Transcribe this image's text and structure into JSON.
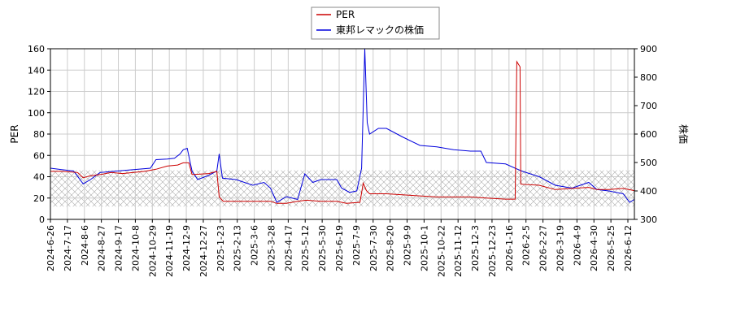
{
  "chart_data": {
    "type": "line",
    "legend": {
      "placement": "top-center",
      "entries": [
        "PER",
        "東邦レマックの株価"
      ]
    },
    "grid": true,
    "y_left": {
      "label": "PER",
      "range": [
        0,
        160
      ],
      "ticks": [
        0,
        20,
        40,
        60,
        80,
        100,
        120,
        140,
        160
      ]
    },
    "y_right": {
      "label": "株価",
      "range": [
        300,
        900
      ],
      "ticks": [
        300,
        400,
        500,
        600,
        700,
        800,
        900
      ]
    },
    "x_range": [
      "2024-06-26",
      "2026-06-26"
    ],
    "x_ticks": [
      "2024-6-26",
      "2024-7-17",
      "2024-8-6",
      "2024-8-27",
      "2024-9-17",
      "2024-10-8",
      "2024-10-29",
      "2024-11-19",
      "2024-12-9",
      "2024-12-27",
      "2025-1-23",
      "2025-2-13",
      "2025-3-6",
      "2025-3-28",
      "2025-4-17",
      "2025-5-12",
      "2025-5-30",
      "2025-6-19",
      "2025-7-9",
      "2025-7-30",
      "2025-8-20",
      "2025-9-9",
      "2025-10-1",
      "2025-10-22",
      "2025-11-12",
      "2025-12-3",
      "2025-12-23",
      "2026-1-16",
      "2026-2-5",
      "2026-2-27",
      "2026-3-19",
      "2026-4-9",
      "2026-4-30",
      "2026-5-25",
      "2026-6-12"
    ],
    "band": {
      "axis": "left",
      "from": 12,
      "to": 46
    },
    "series": [
      {
        "name": "PER",
        "axis": "left",
        "color": "#cc0000",
        "points": [
          [
            "2024-06-26",
            45
          ],
          [
            "2024-07-10",
            45
          ],
          [
            "2024-07-30",
            44
          ],
          [
            "2024-08-06",
            39
          ],
          [
            "2024-08-15",
            41
          ],
          [
            "2024-08-27",
            42
          ],
          [
            "2024-09-10",
            44
          ],
          [
            "2024-09-24",
            43
          ],
          [
            "2024-10-08",
            44
          ],
          [
            "2024-10-22",
            45
          ],
          [
            "2024-11-05",
            47
          ],
          [
            "2024-11-19",
            50
          ],
          [
            "2024-12-02",
            51
          ],
          [
            "2024-12-09",
            53
          ],
          [
            "2024-12-16",
            53
          ],
          [
            "2024-12-20",
            42
          ],
          [
            "2025-01-10",
            43
          ],
          [
            "2025-01-20",
            45
          ],
          [
            "2025-01-23",
            21
          ],
          [
            "2025-01-28",
            17
          ],
          [
            "2025-02-13",
            17
          ],
          [
            "2025-03-06",
            17
          ],
          [
            "2025-03-28",
            17
          ],
          [
            "2025-04-05",
            15
          ],
          [
            "2025-04-17",
            15
          ],
          [
            "2025-05-01",
            17
          ],
          [
            "2025-05-12",
            18
          ],
          [
            "2025-05-30",
            17
          ],
          [
            "2025-06-19",
            17
          ],
          [
            "2025-07-01",
            15
          ],
          [
            "2025-07-18",
            16
          ],
          [
            "2025-07-22",
            34
          ],
          [
            "2025-07-26",
            27
          ],
          [
            "2025-07-30",
            24
          ],
          [
            "2025-08-20",
            24
          ],
          [
            "2025-09-09",
            23
          ],
          [
            "2025-10-01",
            22
          ],
          [
            "2025-10-22",
            21
          ],
          [
            "2025-11-12",
            21
          ],
          [
            "2025-12-03",
            21
          ],
          [
            "2025-12-23",
            20
          ],
          [
            "2026-01-16",
            19
          ],
          [
            "2026-01-28",
            19
          ],
          [
            "2026-01-30",
            148
          ],
          [
            "2026-02-03",
            143
          ],
          [
            "2026-02-04",
            33
          ],
          [
            "2026-02-27",
            32
          ],
          [
            "2026-03-19",
            28
          ],
          [
            "2026-04-09",
            29
          ],
          [
            "2026-04-30",
            30
          ],
          [
            "2026-05-10",
            28
          ],
          [
            "2026-05-25",
            28
          ],
          [
            "2026-06-12",
            29
          ],
          [
            "2026-06-26",
            27
          ]
        ]
      },
      {
        "name": "東邦レマックの株価",
        "axis": "right",
        "color": "#0000dd",
        "points": [
          [
            "2024-06-26",
            480
          ],
          [
            "2024-07-10",
            475
          ],
          [
            "2024-07-25",
            470
          ],
          [
            "2024-08-06",
            425
          ],
          [
            "2024-08-15",
            440
          ],
          [
            "2024-08-27",
            465
          ],
          [
            "2024-09-17",
            470
          ],
          [
            "2024-10-08",
            475
          ],
          [
            "2024-10-29",
            480
          ],
          [
            "2024-11-05",
            510
          ],
          [
            "2024-11-19",
            512
          ],
          [
            "2024-11-28",
            515
          ],
          [
            "2024-12-05",
            530
          ],
          [
            "2024-12-09",
            545
          ],
          [
            "2024-12-14",
            550
          ],
          [
            "2024-12-20",
            470
          ],
          [
            "2024-12-27",
            440
          ],
          [
            "2025-01-10",
            455
          ],
          [
            "2025-01-20",
            470
          ],
          [
            "2025-01-23",
            530
          ],
          [
            "2025-01-27",
            445
          ],
          [
            "2025-02-13",
            440
          ],
          [
            "2025-03-06",
            420
          ],
          [
            "2025-03-20",
            430
          ],
          [
            "2025-03-28",
            410
          ],
          [
            "2025-04-05",
            360
          ],
          [
            "2025-04-17",
            380
          ],
          [
            "2025-05-01",
            370
          ],
          [
            "2025-05-10",
            460
          ],
          [
            "2025-05-20",
            430
          ],
          [
            "2025-05-30",
            440
          ],
          [
            "2025-06-19",
            440
          ],
          [
            "2025-06-25",
            410
          ],
          [
            "2025-07-05",
            395
          ],
          [
            "2025-07-14",
            400
          ],
          [
            "2025-07-20",
            480
          ],
          [
            "2025-07-24",
            900
          ],
          [
            "2025-07-27",
            640
          ],
          [
            "2025-07-30",
            600
          ],
          [
            "2025-08-10",
            620
          ],
          [
            "2025-08-20",
            620
          ],
          [
            "2025-09-09",
            590
          ],
          [
            "2025-10-01",
            560
          ],
          [
            "2025-10-22",
            555
          ],
          [
            "2025-11-12",
            545
          ],
          [
            "2025-12-03",
            540
          ],
          [
            "2025-12-16",
            540
          ],
          [
            "2025-12-23",
            500
          ],
          [
            "2026-01-16",
            495
          ],
          [
            "2026-02-05",
            470
          ],
          [
            "2026-02-27",
            450
          ],
          [
            "2026-03-19",
            420
          ],
          [
            "2026-04-09",
            410
          ],
          [
            "2026-04-30",
            430
          ],
          [
            "2026-05-10",
            405
          ],
          [
            "2026-05-25",
            400
          ],
          [
            "2026-06-12",
            390
          ],
          [
            "2026-06-20",
            360
          ],
          [
            "2026-06-26",
            370
          ]
        ]
      }
    ]
  }
}
